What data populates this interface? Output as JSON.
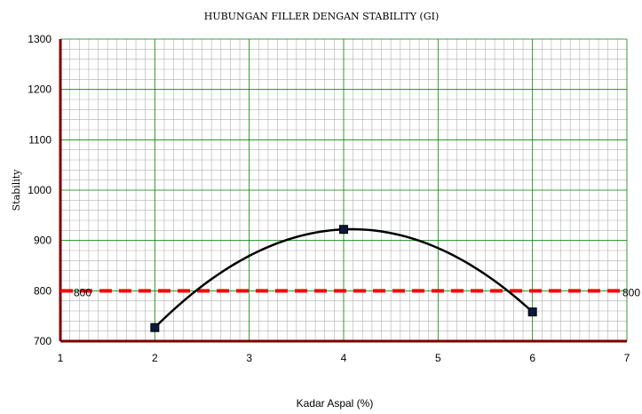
{
  "chart_data": {
    "type": "line",
    "title": "HUBUNGAN FILLER DENGAN STABILITY  (GI)",
    "xlabel": "Kadar Aspal (%)",
    "ylabel": "Stability",
    "xlim": [
      1,
      7
    ],
    "ylim": [
      700,
      1300
    ],
    "x_ticks": [
      "1",
      "2",
      "3",
      "4",
      "5",
      "6",
      "7"
    ],
    "y_ticks": [
      "700",
      "800",
      "900",
      "1000",
      "1100",
      "1200",
      "1300"
    ],
    "grid": true,
    "series": [
      {
        "x": [
          2,
          4,
          6
        ],
        "values": [
          727,
          922,
          758
        ],
        "color": "#000000",
        "marker": "square",
        "smooth": true
      }
    ],
    "reference_line": {
      "value": 800,
      "label_left": "800",
      "label_right": "800",
      "color": "#ff0000",
      "style": "dashed"
    },
    "colors": {
      "axis": "#7b0000",
      "major_grid": "#008000",
      "minor_grid": "#b0b0b0"
    }
  }
}
